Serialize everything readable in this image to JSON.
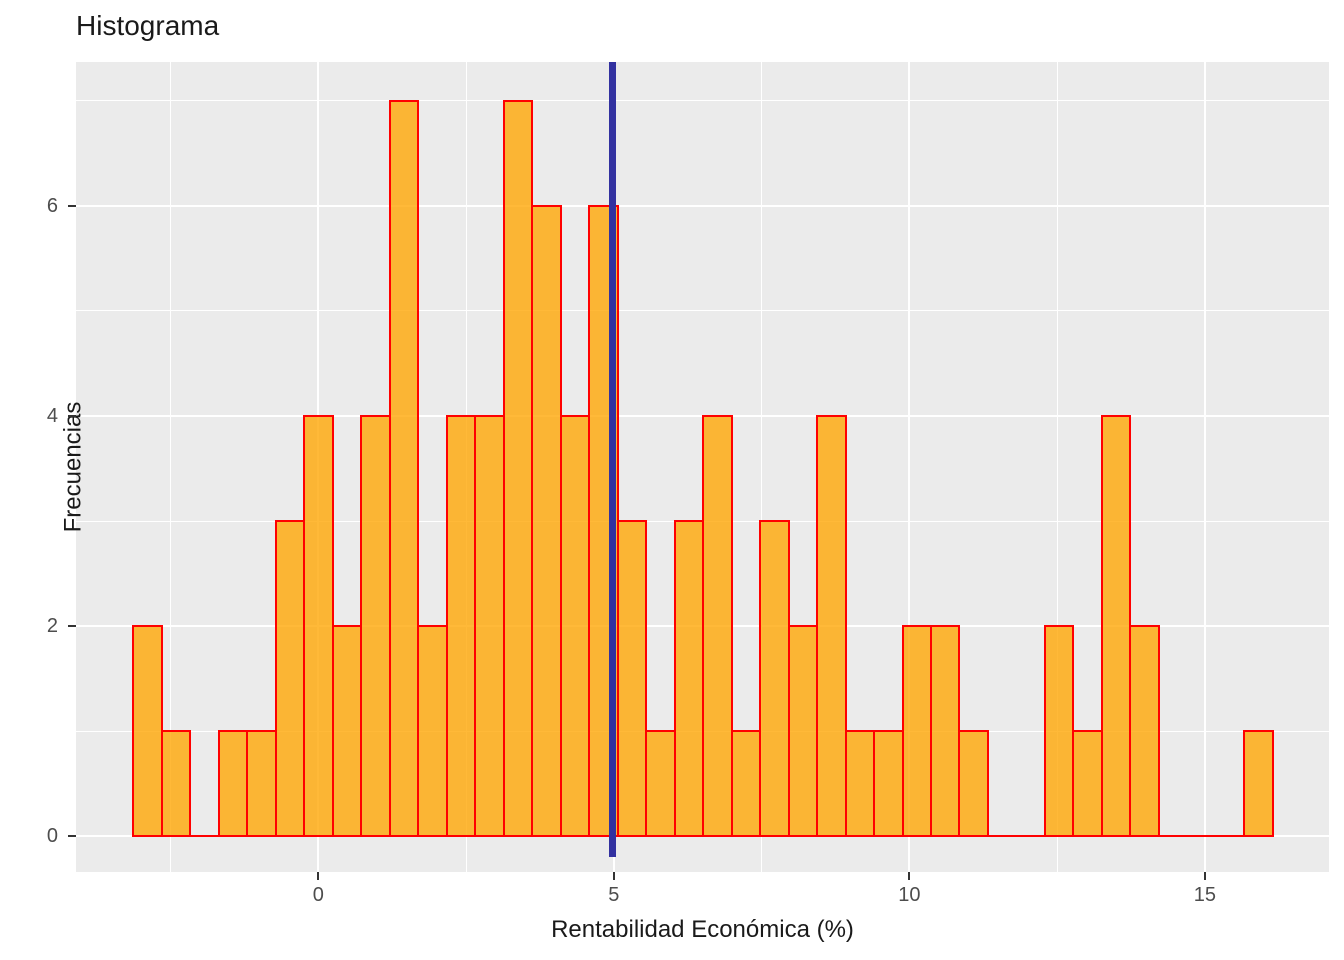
{
  "title": "Histograma",
  "x_axis": {
    "label": "Rentabilidad Económica (%)",
    "major_ticks": [
      0,
      5,
      10,
      15
    ],
    "minor_ticks": [
      -2.5,
      2.5,
      7.5,
      12.5
    ],
    "range": [
      -4.1,
      17.1
    ]
  },
  "y_axis": {
    "label": "Frecuencias",
    "major_ticks": [
      0,
      2,
      4,
      6
    ],
    "minor_ticks": [
      1,
      3,
      5,
      7
    ],
    "range": [
      -0.34,
      7.37
    ]
  },
  "chart_data": {
    "type": "bar",
    "subtype": "histogram",
    "title": "Histograma",
    "xlabel": "Rentabilidad Económica (%)",
    "ylabel": "Frecuencias",
    "bin_start": -3.13,
    "bin_width": 0.482,
    "counts": [
      2,
      1,
      0,
      1,
      1,
      3,
      4,
      2,
      4,
      7,
      2,
      4,
      4,
      7,
      6,
      4,
      6,
      3,
      1,
      3,
      4,
      1,
      3,
      2,
      4,
      1,
      1,
      2,
      2,
      1,
      0,
      0,
      2,
      1,
      4,
      2,
      0,
      0,
      0,
      1
    ],
    "total_observations": 96,
    "vline_x": 4.97,
    "xlim": [
      -4.1,
      17.1
    ],
    "ylim": [
      -0.34,
      7.37
    ],
    "grid": "major-and-minor white on grey panel",
    "legend": "none"
  },
  "colors": {
    "bar_fill": "rgba(255,165,0,0.78)",
    "bar_border": "#FF0000",
    "panel_background": "#EBEBEB",
    "gridline": "#FFFFFF",
    "vline": "#3231A0",
    "tick_label": "#4D4D4D",
    "tick_mark": "#333333",
    "text": "#1a1a1a"
  }
}
